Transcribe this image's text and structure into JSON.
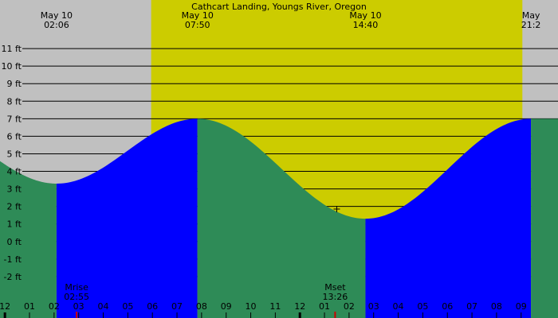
{
  "chart_data": {
    "type": "area",
    "title": "Cathcart Landing, Youngs River, Oregon",
    "xlabel": "",
    "ylabel": "",
    "y_unit": "ft",
    "ylim": [
      -3,
      12
    ],
    "y_ticks": [
      -2,
      -1,
      0,
      1,
      2,
      3,
      4,
      5,
      6,
      7,
      8,
      9,
      10,
      11
    ],
    "x_range_hours": [
      -0.2,
      22.5
    ],
    "daylight_hours": [
      5.95,
      21.05
    ],
    "x_hour_labels": [
      "11",
      "12",
      "01",
      "02",
      "03",
      "04",
      "05",
      "06",
      "07",
      "08",
      "09",
      "10",
      "11",
      "12",
      "01",
      "02",
      "03",
      "04",
      "05",
      "06",
      "07",
      "08",
      "09"
    ],
    "tide_extremes": [
      {
        "date": "May 10",
        "time": "02:06",
        "hour": 2.1,
        "height_ft": 3.3,
        "type": "low"
      },
      {
        "date": "May 10",
        "time": "07:50",
        "hour": 7.833,
        "height_ft": 7.0,
        "type": "high"
      },
      {
        "date": "May 10",
        "time": "14:40",
        "hour": 14.667,
        "height_ft": 1.3,
        "type": "low"
      },
      {
        "date": "May",
        "time": "21:2",
        "hour": 21.4,
        "height_ft": 7.0,
        "type": "high"
      }
    ],
    "start_height_ft": 4.95,
    "moon_events": [
      {
        "label": "Mrise",
        "time": "02:55",
        "hour": 2.917
      },
      {
        "label": "Mset",
        "time": "13:26",
        "hour": 13.433
      }
    ],
    "current_marker": {
      "hour": 13.5,
      "height_ft": 1.85
    },
    "colors": {
      "background": "#c0c0c0",
      "daylight": "#cccc00",
      "rising_tide": "#0000ff",
      "falling_tide": "#2e8b57",
      "grid": "#000000",
      "moon_tick": "#cc0000"
    }
  }
}
